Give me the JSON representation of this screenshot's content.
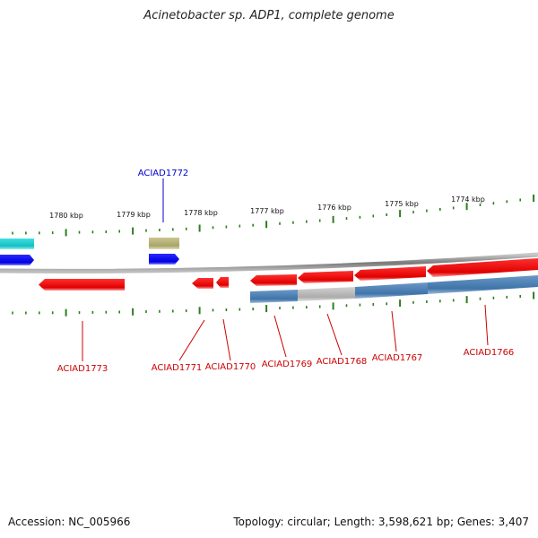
{
  "title": "Acinetobacter sp. ADP1, complete genome",
  "footer": {
    "accession": "Accession: NC_005966",
    "stats": "Topology: circular; Length: 3,598,621 bp; Genes: 3,407"
  },
  "colors": {
    "forward_gene": "#0000ee",
    "reverse_gene": "#ee0000",
    "label_forward": "#0000cc",
    "label_reverse": "#cc0000",
    "tick": "#2e7d1e",
    "backbone": "#808080",
    "cyan_feature": "#1ec8c8",
    "olive_feature": "#b4b07a",
    "steel_feature": "#4a7fb0",
    "grey_feature": "#b8b8b8"
  },
  "scale_labels": [
    "1780 kbp",
    "1779 kbp",
    "1778 kbp",
    "1777 kbp",
    "1776 kbp",
    "1775 kbp",
    "1774 kbp"
  ],
  "gene_labels_forward": [
    "ACIAD1772"
  ],
  "gene_labels_reverse": [
    "ACIAD1773",
    "ACIAD1771",
    "ACIAD1770",
    "ACIAD1769",
    "ACIAD1768",
    "ACIAD1767",
    "ACIAD1766"
  ]
}
